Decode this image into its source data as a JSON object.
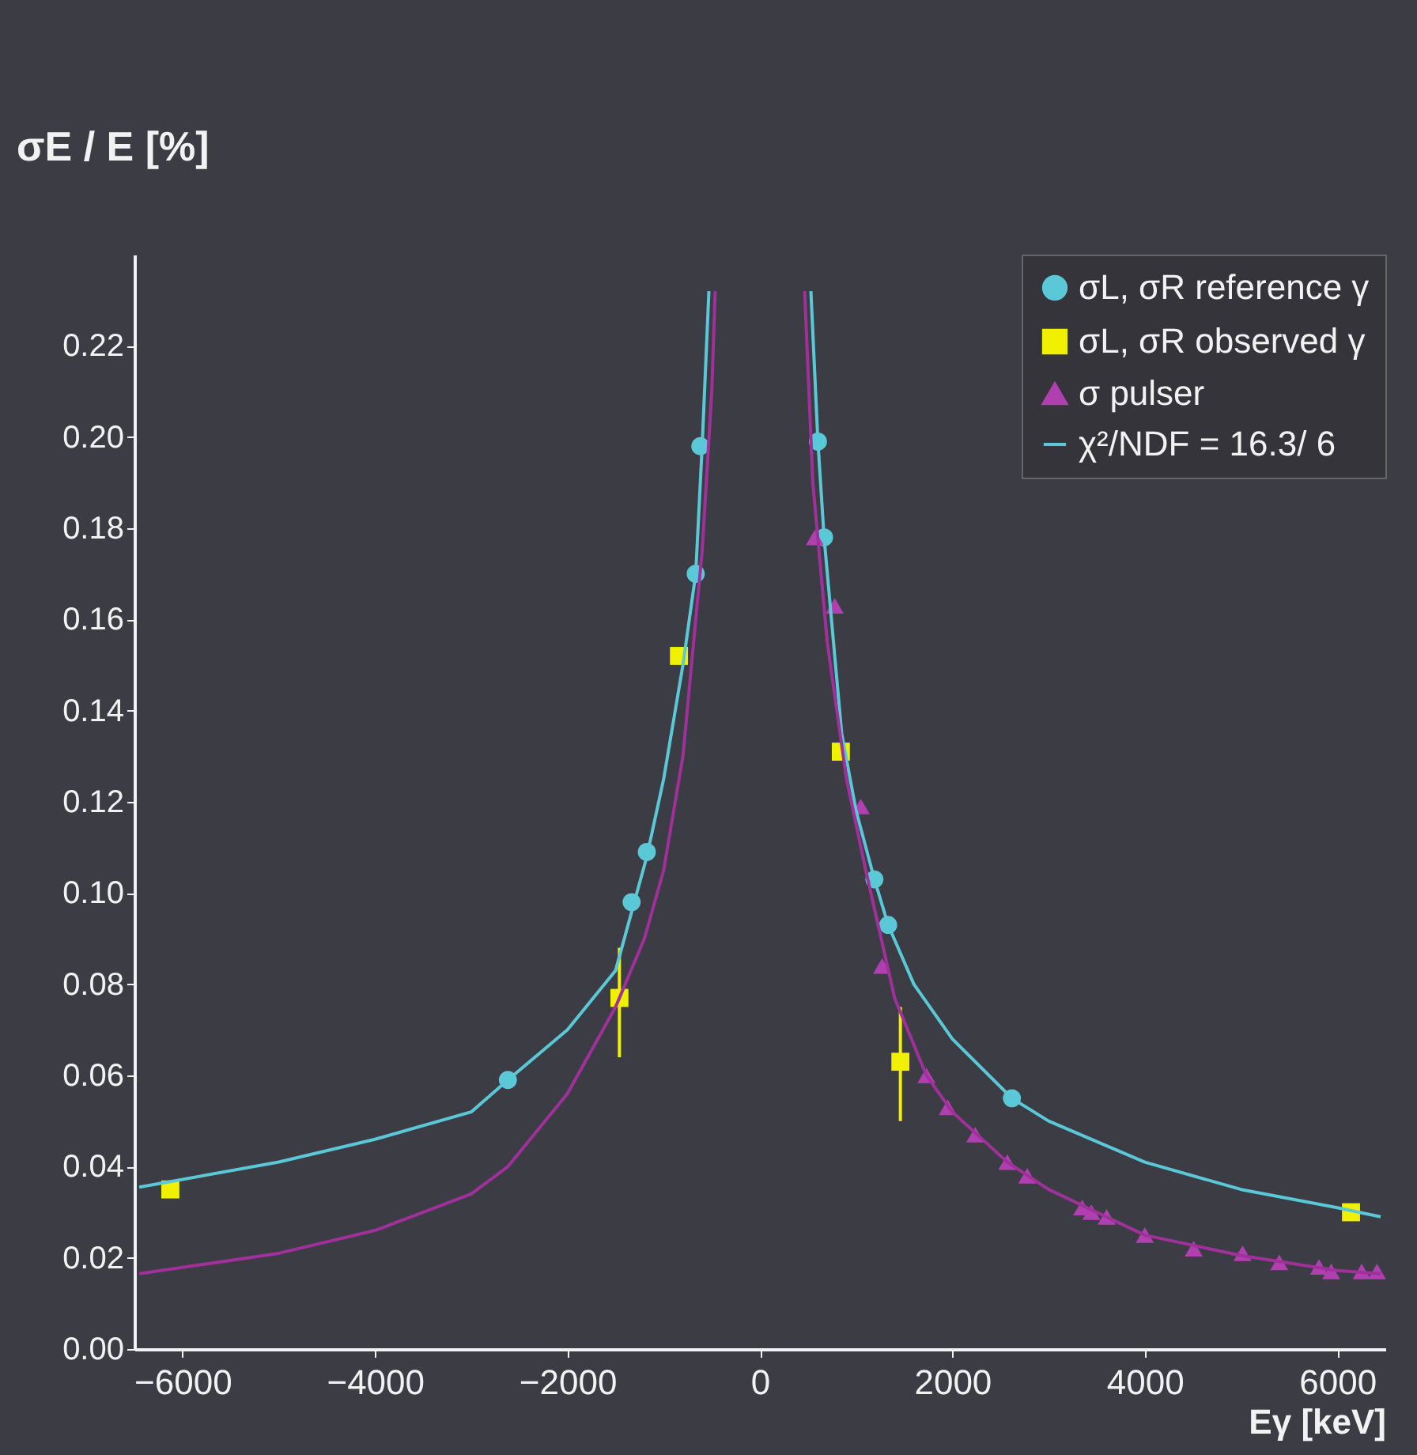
{
  "chart_data": {
    "type": "scatter",
    "xlabel": "Eγ [keV]",
    "ylabel": "σE / E [%]",
    "xlim": [
      -6500,
      6500
    ],
    "xticks": [
      -6000,
      -4000,
      -2000,
      0,
      2000,
      4000,
      6000
    ],
    "ylim": [
      0,
      0.24
    ],
    "yticks": [
      {
        "value": 0,
        "label": "0.00"
      },
      {
        "value": 0.02,
        "label": "0.02"
      },
      {
        "value": 0.04,
        "label": "0.04"
      },
      {
        "value": 0.06,
        "label": "0.06"
      },
      {
        "value": 0.08,
        "label": "0.08"
      },
      {
        "value": 0.1,
        "label": "0.10"
      },
      {
        "value": 0.12,
        "label": "0.12"
      },
      {
        "value": 0.14,
        "label": "0.14"
      },
      {
        "value": 0.16,
        "label": "0.16"
      },
      {
        "value": 0.18,
        "label": "0.18"
      },
      {
        "value": 0.2,
        "label": "0.20"
      },
      {
        "value": 0.22,
        "label": "0.22"
      }
    ],
    "grid": false,
    "legend": "top right",
    "series": [
      {
        "name": "σL, σR reference γ",
        "marker": "circle",
        "color": "#5bc8d8",
        "x": [
          -2619,
          -1333,
          -1175,
          -667,
          -619,
          603,
          667,
          1190,
          1333,
          2619
        ],
        "values": [
          0.059,
          0.098,
          0.109,
          0.17,
          0.198,
          0.199,
          0.178,
          0.103,
          0.093,
          0.055
        ]
      },
      {
        "name": "σL, σR observed γ",
        "marker": "square",
        "color": "#f0f000",
        "x": [
          -6127,
          -1460,
          -841,
          841,
          1460,
          6143
        ],
        "values": [
          0.035,
          0.077,
          0.152,
          0.131,
          0.063,
          0.03
        ],
        "errors": [
          null,
          [
            0.064,
            0.088
          ],
          null,
          null,
          [
            0.05,
            0.075
          ],
          null
        ]
      },
      {
        "name": "σ  pulser",
        "marker": "triangle",
        "color": "#b040b0",
        "x": [
          571,
          778,
          1048,
          1270,
          1730,
          1952,
          2238,
          2571,
          2778,
          3349,
          3444,
          3603,
          4000,
          4508,
          5016,
          5397,
          5810,
          5937,
          6254,
          6413
        ],
        "values": [
          0.178,
          0.163,
          0.119,
          0.084,
          0.06,
          0.053,
          0.047,
          0.041,
          0.038,
          0.031,
          0.03,
          0.029,
          0.025,
          0.022,
          0.021,
          0.019,
          0.018,
          0.017,
          0.017,
          0.017
        ]
      },
      {
        "name": "χ²/NDF =  16.3/  6",
        "type": "line",
        "marker": "none",
        "color": "#5bc8d8",
        "x": [
          -6450,
          -5000,
          -4000,
          -3000,
          -2619,
          -2000,
          -1500,
          -1175,
          -1000,
          -800,
          -667,
          -600,
          -530,
          0,
          530,
          603,
          667,
          850,
          1000,
          1190,
          1333,
          1600,
          2000,
          2619,
          3000,
          4000,
          5000,
          6000,
          6450
        ],
        "values": [
          0.0355,
          0.041,
          0.046,
          0.052,
          0.059,
          0.07,
          0.083,
          0.108,
          0.125,
          0.15,
          0.17,
          0.198,
          0.232,
          null,
          0.232,
          0.199,
          0.178,
          0.135,
          0.118,
          0.103,
          0.093,
          0.08,
          0.068,
          0.055,
          0.05,
          0.041,
          0.035,
          0.031,
          0.029
        ]
      },
      {
        "type": "line",
        "marker": "none",
        "color": "#a0309a",
        "x": [
          -6450,
          -5000,
          -4000,
          -3000,
          -2619,
          -2000,
          -1500,
          -1200,
          -1000,
          -800,
          -600,
          -500,
          -465,
          0,
          465,
          550,
          700,
          900,
          1100,
          1400,
          1730,
          2000,
          2571,
          3000,
          4000,
          5000,
          6000,
          6450
        ],
        "values": [
          0.0165,
          0.021,
          0.026,
          0.034,
          0.04,
          0.056,
          0.075,
          0.09,
          0.105,
          0.13,
          0.175,
          0.21,
          0.232,
          null,
          0.232,
          0.19,
          0.155,
          0.125,
          0.105,
          0.077,
          0.06,
          0.052,
          0.041,
          0.035,
          0.025,
          0.0205,
          0.0172,
          0.0165
        ]
      }
    ]
  }
}
